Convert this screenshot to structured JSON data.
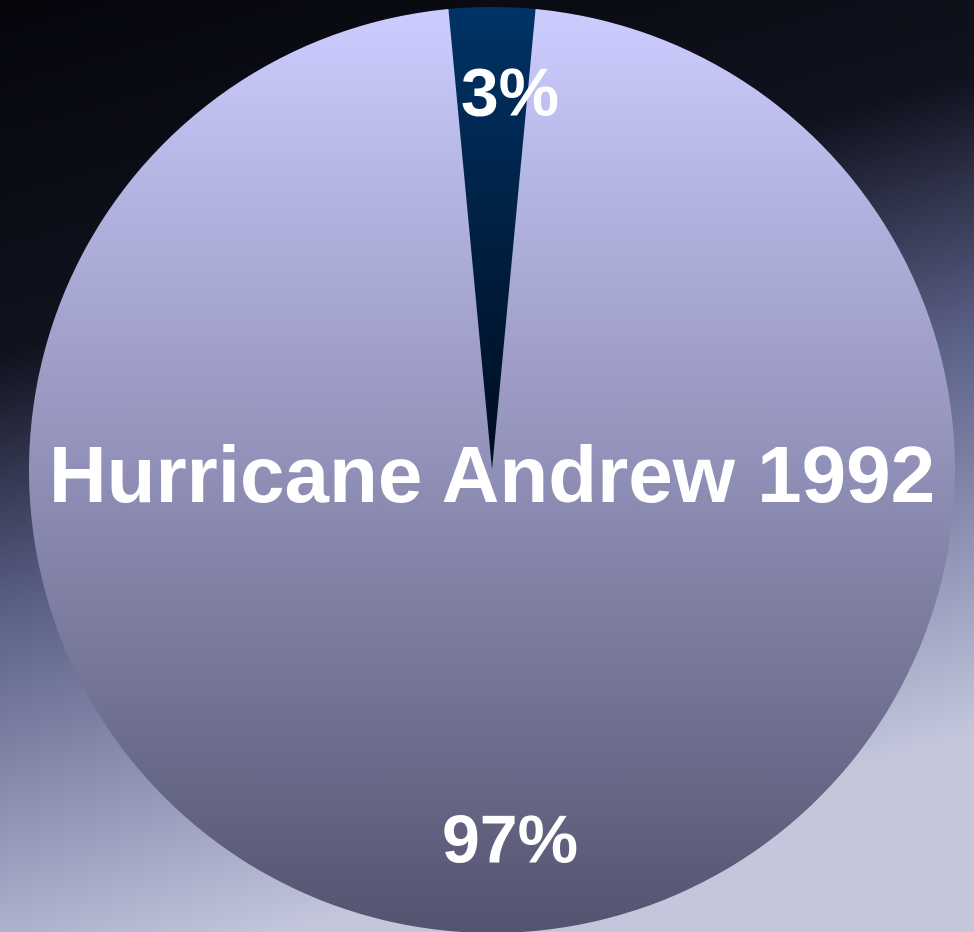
{
  "chart_data": {
    "type": "pie",
    "title": "Hurricane Andrew 1992",
    "values": [
      3,
      97
    ],
    "value_labels": [
      "3%",
      "97%"
    ],
    "colors": [
      "#003366",
      "#ccccff"
    ]
  }
}
